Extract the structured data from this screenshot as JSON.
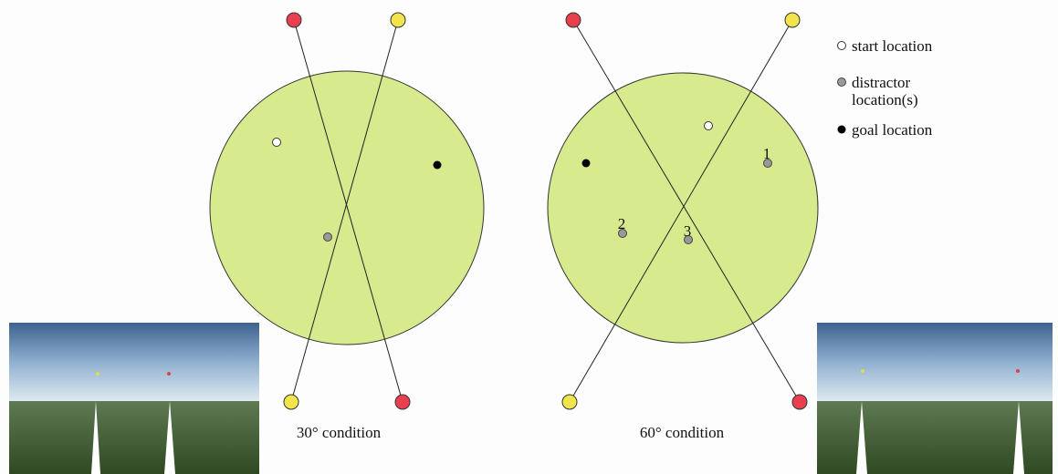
{
  "legend": {
    "start": "start location",
    "distractor": [
      "distractor",
      "location(s)"
    ],
    "goal": "goal location"
  },
  "panels": [
    {
      "caption": "30° condition"
    },
    {
      "caption": "60° condition",
      "distractor_labels": [
        "1",
        "2",
        "3"
      ]
    }
  ]
}
